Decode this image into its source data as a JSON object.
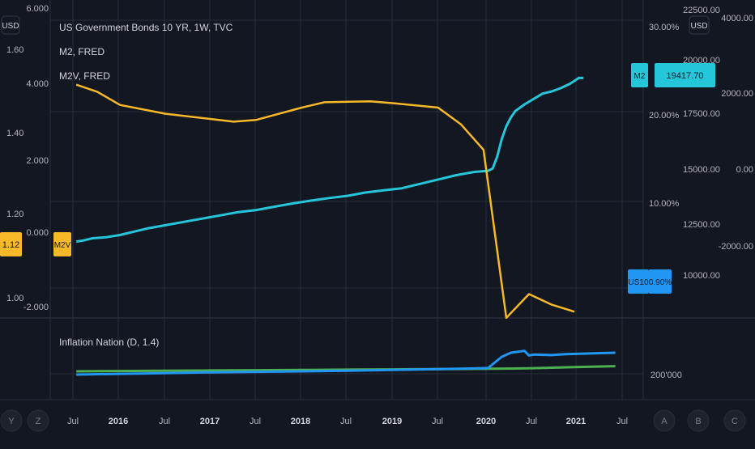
{
  "colors": {
    "background": "#131722",
    "grid": "#2a2e39",
    "axis_text": "#b2b5be",
    "m2": "#26c6da",
    "m2v": "#f7b928",
    "us10": "#2196f3",
    "inflation_blue": "#2196f3",
    "inflation_green": "#4caf50"
  },
  "chart_data": [
    {
      "type": "line",
      "legend": [
        "US Government Bonds 10 YR, 1W, TVC",
        "M2, FRED",
        "M2V, FRED"
      ],
      "x_ticks": [
        "Jul",
        "2016",
        "Jul",
        "2017",
        "Jul",
        "2018",
        "Jul",
        "2019",
        "Jul",
        "2020",
        "Jul",
        "2021",
        "Jul"
      ],
      "axes": {
        "far_left": {
          "unit": "USD",
          "ticks": [
            "1.60",
            "1.40",
            "1.20",
            "1.00"
          ],
          "badge": "1.12"
        },
        "left": {
          "ticks": [
            "6.000",
            "4.000",
            "2.000",
            "0.000",
            "-2.000"
          ]
        },
        "right_pct": {
          "ticks": [
            "30.00%",
            "20.00%",
            "10.00%"
          ],
          "ylim": [
            -10,
            30
          ]
        },
        "right_level": {
          "ticks": [
            "22500.00",
            "20000.00",
            "17500.00",
            "15000.00",
            "12500.00",
            "10000.00"
          ],
          "ylim": [
            8500,
            23000
          ]
        },
        "far_right": {
          "unit": "USD",
          "ticks": [
            "4000.00",
            "2000.00",
            "0.00",
            "-2000.00"
          ]
        }
      },
      "series": [
        {
          "name": "M2",
          "badge_label": "M2",
          "badge_value": "19417.70",
          "x": [
            2015.52,
            2015.6,
            2015.7,
            2015.85,
            2016.0,
            2016.15,
            2016.3,
            2016.5,
            2016.7,
            2016.9,
            2017.1,
            2017.3,
            2017.5,
            2017.7,
            2017.9,
            2018.1,
            2018.3,
            2018.5,
            2018.7,
            2018.9,
            2019.1,
            2019.3,
            2019.5,
            2019.7,
            2019.9,
            2020.05,
            2020.1,
            2020.15,
            2020.2,
            2020.25,
            2020.3,
            2020.35,
            2020.45,
            2020.55,
            2020.65,
            2020.75,
            2020.85,
            2020.95,
            2021.05,
            2021.1
          ],
          "values": [
            11900,
            11950,
            12050,
            12100,
            12200,
            12350,
            12500,
            12650,
            12800,
            12950,
            13100,
            13250,
            13350,
            13500,
            13650,
            13780,
            13900,
            14000,
            14150,
            14250,
            14350,
            14550,
            14750,
            14950,
            15100,
            15150,
            15250,
            15800,
            16600,
            17200,
            17600,
            17900,
            18200,
            18450,
            18700,
            18800,
            18950,
            19150,
            19420,
            19417.7
          ]
        },
        {
          "name": "M2V",
          "badge_label": "M2V",
          "x": [
            2015.52,
            2015.75,
            2016.0,
            2016.5,
            2017.0,
            2017.25,
            2017.5,
            2018.0,
            2018.25,
            2018.75,
            2019.0,
            2019.5,
            2019.75,
            2020.0,
            2020.25,
            2020.5,
            2020.75,
            2021.0
          ],
          "values": [
            23.5,
            22.7,
            21.2,
            20.2,
            19.6,
            19.3,
            19.5,
            20.9,
            21.5,
            21.6,
            21.4,
            20.9,
            19.0,
            16.1,
            -3.0,
            -0.3,
            -1.5,
            -2.3
          ]
        },
        {
          "name": "US10",
          "badge_label": "US10",
          "badge_value": "0.90%"
        }
      ]
    },
    {
      "type": "line",
      "title": "Inflation Nation (D, 1.4)",
      "y_ticks": [
        "200'000"
      ],
      "series": [
        {
          "x": [
            2015.52,
            2016.0,
            2016.5,
            2017.0,
            2017.5,
            2018.0,
            2018.5,
            2019.0,
            2019.5,
            2019.9,
            2020.05,
            2020.2,
            2020.3,
            2020.45,
            2020.5,
            2020.55,
            2020.75,
            2020.9,
            2021.1,
            2021.25,
            2021.45
          ],
          "values": [
            0.0,
            0.08,
            0.16,
            0.24,
            0.3,
            0.35,
            0.42,
            0.5,
            0.58,
            0.66,
            0.7,
            1.9,
            2.35,
            2.55,
            2.05,
            2.15,
            2.1,
            2.2,
            2.25,
            2.3,
            2.35
          ]
        },
        {
          "x": [
            2015.52,
            2016.0,
            2016.5,
            2017.0,
            2017.5,
            2018.0,
            2018.5,
            2019.0,
            2019.5,
            2020.0,
            2020.5,
            2021.0,
            2021.45
          ],
          "values": [
            0.35,
            0.38,
            0.41,
            0.44,
            0.47,
            0.5,
            0.53,
            0.56,
            0.59,
            0.62,
            0.67,
            0.8,
            0.9
          ]
        }
      ]
    }
  ],
  "toolbar": {
    "left_buttons": [
      "Y",
      "Z"
    ],
    "right_buttons": [
      "A",
      "B",
      "C"
    ]
  }
}
